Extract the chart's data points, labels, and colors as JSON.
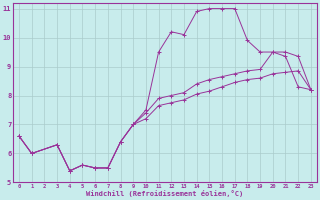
{
  "background_color": "#c8ecec",
  "line_color": "#993399",
  "xlim": [
    -0.5,
    23.5
  ],
  "ylim": [
    5,
    11.2
  ],
  "xticks": [
    0,
    1,
    2,
    3,
    4,
    5,
    6,
    7,
    8,
    9,
    10,
    11,
    12,
    13,
    14,
    15,
    16,
    17,
    18,
    19,
    20,
    21,
    22,
    23
  ],
  "yticks": [
    5,
    6,
    7,
    8,
    9,
    10,
    11
  ],
  "grid_color": "#aacccc",
  "xlabel": "Windchill (Refroidissement éolien,°C)",
  "s1x": [
    0,
    1,
    3,
    4,
    5,
    6,
    7,
    8,
    9,
    10,
    11,
    12,
    13,
    14,
    15,
    16,
    17,
    18,
    19,
    20,
    21,
    22,
    23
  ],
  "s1y": [
    6.6,
    6.0,
    6.3,
    5.4,
    5.6,
    5.5,
    5.5,
    6.4,
    7.0,
    7.5,
    9.5,
    10.2,
    10.1,
    10.9,
    11.0,
    11.0,
    11.0,
    9.9,
    9.5,
    9.5,
    9.35,
    8.3,
    8.2
  ],
  "s2x": [
    0,
    1,
    3,
    4,
    5,
    6,
    7,
    8,
    9,
    10,
    11,
    12,
    13,
    14,
    15,
    16,
    17,
    18,
    19,
    20,
    21,
    22,
    23
  ],
  "s2y": [
    6.6,
    6.0,
    6.3,
    5.4,
    5.6,
    5.5,
    5.5,
    6.4,
    7.0,
    7.4,
    7.9,
    8.0,
    8.1,
    8.4,
    8.55,
    8.65,
    8.75,
    8.85,
    8.9,
    9.5,
    9.5,
    9.35,
    8.2
  ],
  "s3x": [
    0,
    1,
    3,
    4,
    5,
    6,
    7,
    8,
    9,
    10,
    11,
    12,
    13,
    14,
    15,
    16,
    17,
    18,
    19,
    20,
    21,
    22,
    23
  ],
  "s3y": [
    6.6,
    6.0,
    6.3,
    5.4,
    5.6,
    5.5,
    5.5,
    6.4,
    7.0,
    7.2,
    7.65,
    7.75,
    7.85,
    8.05,
    8.15,
    8.3,
    8.45,
    8.55,
    8.6,
    8.75,
    8.8,
    8.85,
    8.2
  ]
}
